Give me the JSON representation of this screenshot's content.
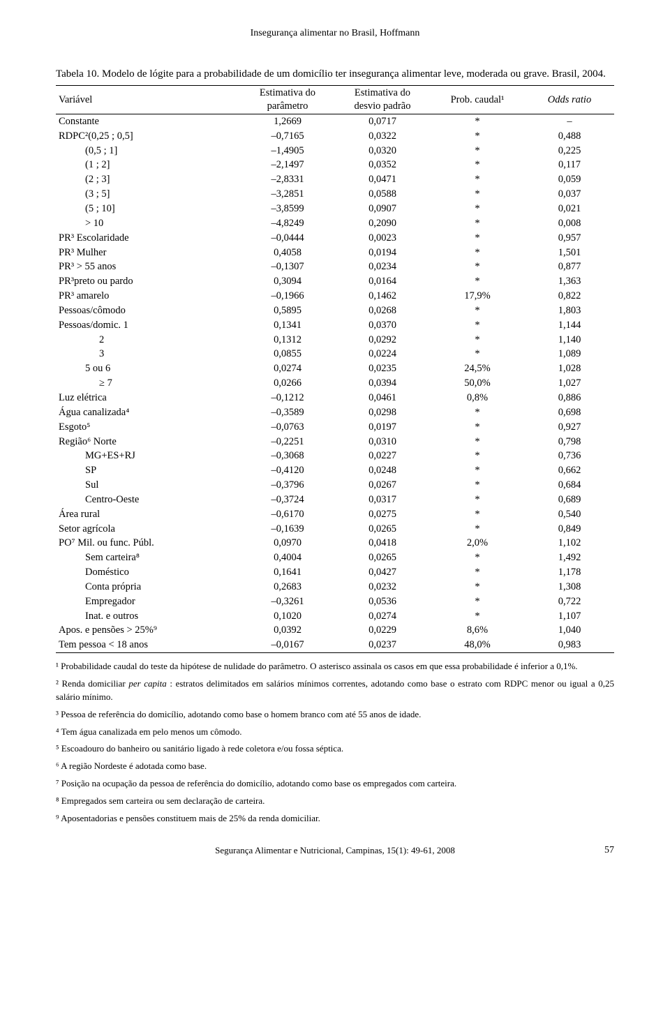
{
  "running_header": "Insegurança alimentar no Brasil, Hoffmann",
  "caption": "Tabela 10. Modelo de lógite para a probabilidade de um domicílio ter insegurança alimentar leve, moderada ou grave. Brasil, 2004.",
  "headers": {
    "var": "Variável",
    "est_param_l1": "Estimativa do",
    "est_param_l2": "parâmetro",
    "est_sd_l1": "Estimativa do",
    "est_sd_l2": "desvio padrão",
    "prob": "Prob. caudal¹",
    "odds": "Odds ratio"
  },
  "rows": [
    {
      "v": "Constante",
      "i": 0,
      "p": "1,2669",
      "s": "0,0717",
      "pr": "*",
      "o": "–"
    },
    {
      "v": "RDPC²(0,25 ; 0,5]",
      "i": 0,
      "p": "–0,7165",
      "s": "0,0322",
      "pr": "*",
      "o": "0,488"
    },
    {
      "v": "(0,5 ; 1]",
      "i": 1,
      "p": "–1,4905",
      "s": "0,0320",
      "pr": "*",
      "o": "0,225"
    },
    {
      "v": "(1 ; 2]",
      "i": 1,
      "p": "–2,1497",
      "s": "0,0352",
      "pr": "*",
      "o": "0,117"
    },
    {
      "v": "(2 ; 3]",
      "i": 1,
      "p": "–2,8331",
      "s": "0,0471",
      "pr": "*",
      "o": "0,059"
    },
    {
      "v": "(3 ; 5]",
      "i": 1,
      "p": "–3,2851",
      "s": "0,0588",
      "pr": "*",
      "o": "0,037"
    },
    {
      "v": "(5 ; 10]",
      "i": 1,
      "p": "–3,8599",
      "s": "0,0907",
      "pr": "*",
      "o": "0,021"
    },
    {
      "v": "> 10",
      "i": 1,
      "p": "–4,8249",
      "s": "0,2090",
      "pr": "*",
      "o": "0,008"
    },
    {
      "v": "PR³ Escolaridade",
      "i": 0,
      "p": "–0,0444",
      "s": "0,0023",
      "pr": "*",
      "o": "0,957"
    },
    {
      "v": "PR³ Mulher",
      "i": 0,
      "p": "0,4058",
      "s": "0,0194",
      "pr": "*",
      "o": "1,501"
    },
    {
      "v": "PR³ > 55 anos",
      "i": 0,
      "p": "–0,1307",
      "s": "0,0234",
      "pr": "*",
      "o": "0,877"
    },
    {
      "v": "PR³preto ou pardo",
      "i": 0,
      "p": "0,3094",
      "s": "0,0164",
      "pr": "*",
      "o": "1,363"
    },
    {
      "v": "PR³ amarelo",
      "i": 0,
      "p": "–0,1966",
      "s": "0,1462",
      "pr": "17,9%",
      "o": "0,822"
    },
    {
      "v": "Pessoas/cômodo",
      "i": 0,
      "p": "0,5895",
      "s": "0,0268",
      "pr": "*",
      "o": "1,803"
    },
    {
      "v": "Pessoas/domic. 1",
      "i": 0,
      "p": "0,1341",
      "s": "0,0370",
      "pr": "*",
      "o": "1,144"
    },
    {
      "v": "2",
      "i": 2,
      "p": "0,1312",
      "s": "0,0292",
      "pr": "*",
      "o": "1,140"
    },
    {
      "v": "3",
      "i": 2,
      "p": "0,0855",
      "s": "0,0224",
      "pr": "*",
      "o": "1,089"
    },
    {
      "v": "5 ou 6",
      "i": 1,
      "p": "0,0274",
      "s": "0,0235",
      "pr": "24,5%",
      "o": "1,028"
    },
    {
      "v": "≥ 7",
      "i": 2,
      "p": "0,0266",
      "s": "0,0394",
      "pr": "50,0%",
      "o": "1,027"
    },
    {
      "v": "Luz elétrica",
      "i": 0,
      "p": "–0,1212",
      "s": "0,0461",
      "pr": "0,8%",
      "o": "0,886"
    },
    {
      "v": "Água canalizada⁴",
      "i": 0,
      "p": "–0,3589",
      "s": "0,0298",
      "pr": "*",
      "o": "0,698"
    },
    {
      "v": "Esgoto⁵",
      "i": 0,
      "p": "–0,0763",
      "s": "0,0197",
      "pr": "*",
      "o": "0,927"
    },
    {
      "v": "Região⁶ Norte",
      "i": 0,
      "p": "–0,2251",
      "s": "0,0310",
      "pr": "*",
      "o": "0,798"
    },
    {
      "v": "MG+ES+RJ",
      "i": 1,
      "p": "–0,3068",
      "s": "0,0227",
      "pr": "*",
      "o": "0,736"
    },
    {
      "v": "SP",
      "i": 1,
      "p": "–0,4120",
      "s": "0,0248",
      "pr": "*",
      "o": "0,662"
    },
    {
      "v": "Sul",
      "i": 1,
      "p": "–0,3796",
      "s": "0,0267",
      "pr": "*",
      "o": "0,684"
    },
    {
      "v": "Centro-Oeste",
      "i": 1,
      "p": "–0,3724",
      "s": "0,0317",
      "pr": "*",
      "o": "0,689"
    },
    {
      "v": "Área rural",
      "i": 0,
      "p": "–0,6170",
      "s": "0,0275",
      "pr": "*",
      "o": "0,540"
    },
    {
      "v": "Setor agrícola",
      "i": 0,
      "p": "–0,1639",
      "s": "0,0265",
      "pr": "*",
      "o": "0,849"
    },
    {
      "v": "PO⁷ Mil. ou func. Públ.",
      "i": 0,
      "p": "0,0970",
      "s": "0,0418",
      "pr": "2,0%",
      "o": "1,102"
    },
    {
      "v": "Sem carteira⁸",
      "i": 1,
      "p": "0,4004",
      "s": "0,0265",
      "pr": "*",
      "o": "1,492"
    },
    {
      "v": "Doméstico",
      "i": 1,
      "p": "0,1641",
      "s": "0,0427",
      "pr": "*",
      "o": "1,178"
    },
    {
      "v": "Conta própria",
      "i": 1,
      "p": "0,2683",
      "s": "0,0232",
      "pr": "*",
      "o": "1,308"
    },
    {
      "v": "Empregador",
      "i": 1,
      "p": "–0,3261",
      "s": "0,0536",
      "pr": "*",
      "o": "0,722"
    },
    {
      "v": "Inat. e outros",
      "i": 1,
      "p": "0,1020",
      "s": "0,0274",
      "pr": "*",
      "o": "1,107"
    },
    {
      "v": "Apos. e pensões > 25%⁹",
      "i": 0,
      "p": "0,0392",
      "s": "0,0229",
      "pr": "8,6%",
      "o": "1,040"
    },
    {
      "v": "Tem pessoa < 18 anos",
      "i": 0,
      "p": "–0,0167",
      "s": "0,0237",
      "pr": "48,0%",
      "o": "0,983"
    }
  ],
  "footnotes": [
    "¹ Probabilidade caudal do teste da hipótese de nulidade do parâmetro. O asterisco assinala os casos em que essa probabilidade é inferior a 0,1%.",
    "² Renda domiciliar per capita : estratos delimitados em salários mínimos correntes, adotando como base o estrato com RDPC menor ou igual a 0,25 salário mínimo.",
    "³ Pessoa de referência do domicílio, adotando como base o homem branco com até 55 anos de idade.",
    "⁴ Tem água canalizada em pelo menos um cômodo.",
    "⁵ Escoadouro do banheiro ou sanitário ligado à rede coletora e/ou fossa séptica.",
    "⁶ A região Nordeste é adotada como base.",
    "⁷ Posição na ocupação da pessoa de referência do domicílio, adotando como base os empregados com carteira.",
    "⁸ Empregados sem carteira ou sem declaração de carteira.",
    "⁹ Aposentadorias e pensões constituem mais de 25% da renda domiciliar."
  ],
  "footer_center": "Segurança Alimentar e Nutricional, Campinas, 15(1): 49-61, 2008",
  "footer_page": "57"
}
